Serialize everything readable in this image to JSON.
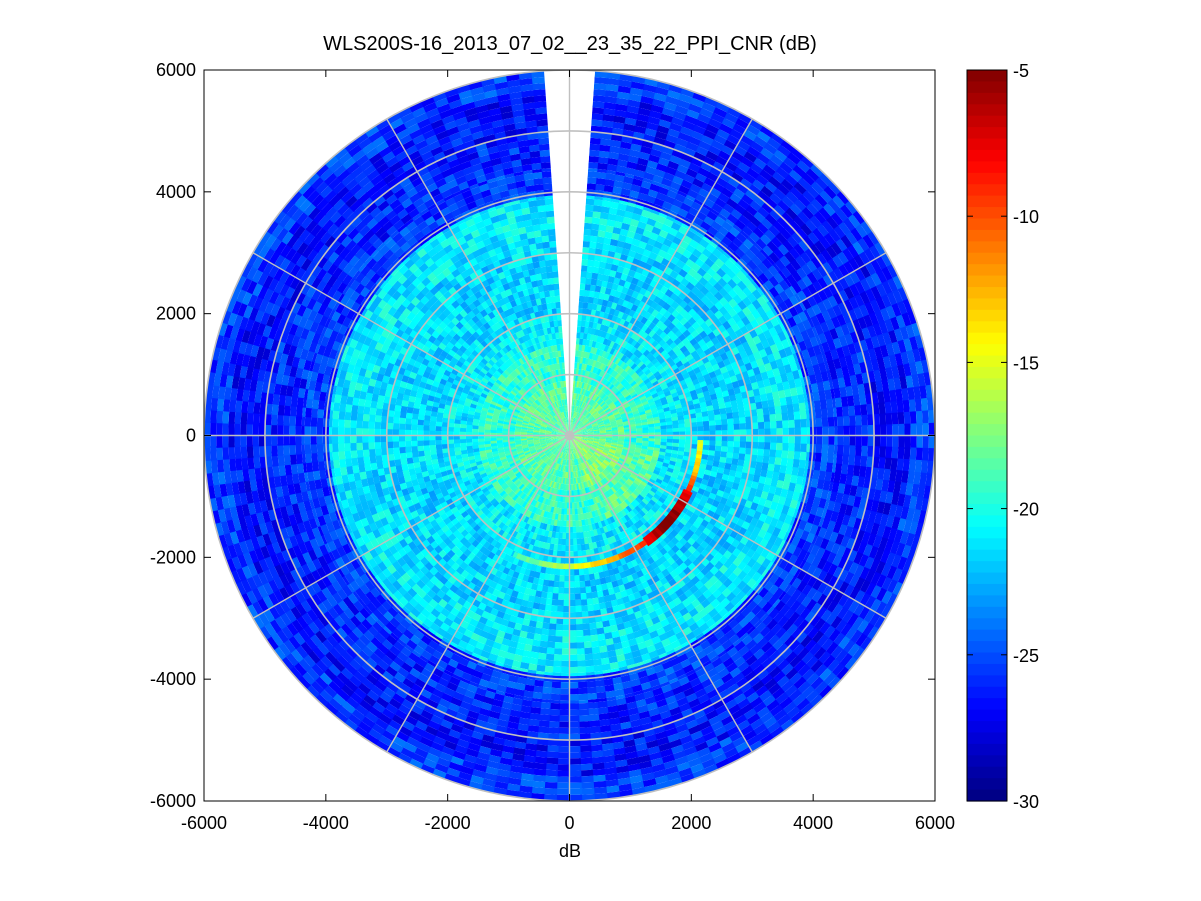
{
  "chart_data": {
    "type": "heatmap",
    "subtype": "polar-ppi",
    "title": "WLS200S-16_2013_07_02__23_35_22_PPI_CNR (dB)",
    "xlabel": "dB",
    "ylabel": "",
    "xlim": [
      -6000,
      6000
    ],
    "ylim": [
      -6000,
      6000
    ],
    "xticks": [
      "-6000",
      "-4000",
      "-2000",
      "0",
      "2000",
      "4000",
      "6000"
    ],
    "yticks": [
      "6000",
      "4000",
      "2000",
      "0",
      "-2000",
      "-4000",
      "-6000"
    ],
    "grid": "polar",
    "range_rings": [
      1000,
      2000,
      3000,
      4000,
      5000,
      6000
    ],
    "spokes_deg": [
      0,
      30,
      60,
      90,
      120,
      150,
      180,
      210,
      240,
      270,
      300,
      330
    ],
    "no_data_sector_deg": [
      -4,
      4
    ],
    "colormap": "jet",
    "colorbar": {
      "clim": [
        -30,
        -5
      ],
      "ticks": [
        "-5",
        "-10",
        "-15",
        "-20",
        "-25",
        "-30"
      ],
      "placement": "right"
    },
    "range_bands": [
      {
        "r0": 0,
        "r1": 900,
        "cnr": -18.5
      },
      {
        "r0": 900,
        "r1": 1500,
        "cnr": -19.5
      },
      {
        "r0": 1500,
        "r1": 2000,
        "cnr": -21.0
      },
      {
        "r0": 2000,
        "r1": 2600,
        "cnr": -21.5
      },
      {
        "r0": 2600,
        "r1": 3300,
        "cnr": -21.5
      },
      {
        "r0": 3300,
        "r1": 3950,
        "cnr": -21.0
      },
      {
        "r0": 3950,
        "r1": 4400,
        "cnr": -25.5
      },
      {
        "r0": 4400,
        "r1": 5000,
        "cnr": -26.0
      },
      {
        "r0": 5000,
        "r1": 5600,
        "cnr": -26.5
      },
      {
        "r0": 5600,
        "r1": 6000,
        "cnr": -25.5
      }
    ],
    "hard_target_arc": {
      "range": 2150,
      "points": [
        {
          "azimuth_deg": 92,
          "cnr": -15
        },
        {
          "azimuth_deg": 100,
          "cnr": -14
        },
        {
          "azimuth_deg": 108,
          "cnr": -12
        },
        {
          "azimuth_deg": 115,
          "cnr": -8
        },
        {
          "azimuth_deg": 122,
          "cnr": -6
        },
        {
          "azimuth_deg": 130,
          "cnr": -5.5
        },
        {
          "azimuth_deg": 138,
          "cnr": -6
        },
        {
          "azimuth_deg": 146,
          "cnr": -9
        },
        {
          "azimuth_deg": 155,
          "cnr": -11
        },
        {
          "azimuth_deg": 165,
          "cnr": -13
        },
        {
          "azimuth_deg": 178,
          "cnr": -15
        },
        {
          "azimuth_deg": 195,
          "cnr": -18
        },
        {
          "azimuth_deg": 205,
          "cnr": -19
        }
      ]
    }
  }
}
